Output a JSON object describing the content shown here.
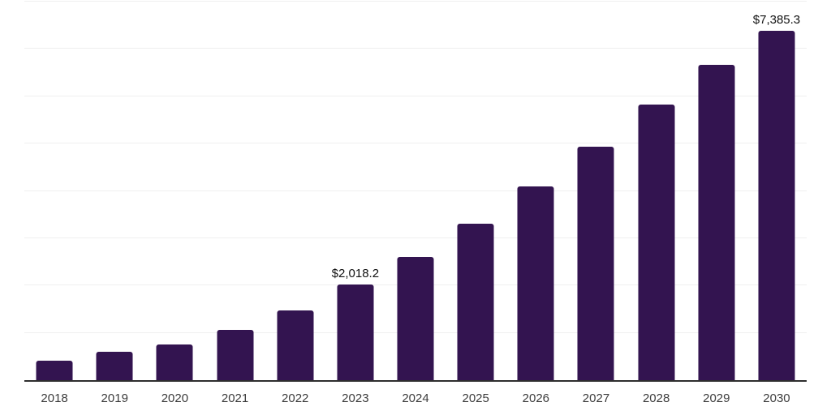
{
  "chart_data": {
    "type": "bar",
    "title": "",
    "xlabel": "",
    "ylabel": "",
    "categories": [
      "2018",
      "2019",
      "2020",
      "2021",
      "2022",
      "2023",
      "2024",
      "2025",
      "2026",
      "2027",
      "2028",
      "2029",
      "2030"
    ],
    "values": [
      410,
      605,
      760,
      1055,
      1480,
      2018.2,
      2600,
      3315,
      4095,
      4940,
      5820,
      6660,
      7385.3
    ],
    "value_labels": {
      "2023": "$2,018.2",
      "2030": "$7,385.3"
    },
    "ylim": [
      0,
      8000
    ],
    "gridline_values": [
      1000,
      2000,
      3000,
      4000,
      5000,
      6000,
      7000,
      8000
    ],
    "grid": "horizontal-only",
    "y_axis_tick_labels": "none",
    "legend": "none",
    "colors": {
      "bar": "#331450",
      "gridline": "#efefef",
      "axis_line": "#2e2e2e",
      "x_tick_label": "#3b3b3b",
      "value_label": "#111111",
      "background": "#ffffff"
    }
  }
}
